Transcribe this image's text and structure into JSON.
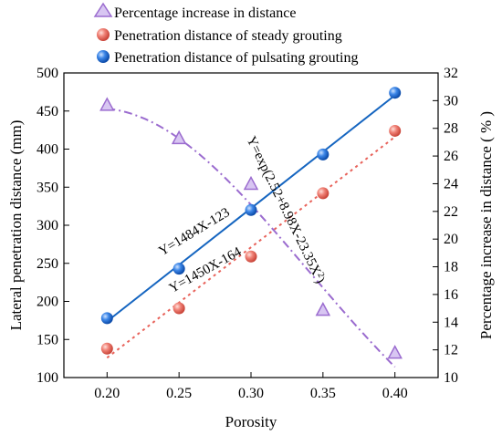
{
  "chart_data": {
    "type": "line",
    "xlabel": "Porosity",
    "ylabel": "Lateral penetration distance (mm)",
    "ylabel_right": "Percentage increase in distance ( % )",
    "x_ticks": [
      "0.20",
      "0.25",
      "0.30",
      "0.35",
      "0.40"
    ],
    "y_ticks": [
      "100",
      "150",
      "200",
      "250",
      "300",
      "350",
      "400",
      "450",
      "500"
    ],
    "y_right_ticks": [
      "10",
      "12",
      "14",
      "16",
      "18",
      "20",
      "22",
      "24",
      "26",
      "28",
      "30",
      "32"
    ],
    "xlim": [
      0.17,
      0.43
    ],
    "ylim": [
      100,
      500
    ],
    "ylim_right": [
      10,
      32
    ],
    "legend": {
      "position": "top",
      "entries": [
        "Percentage increase in distance",
        "Penetration distance of steady grouting",
        "Penetration distance of pulsating grouting"
      ]
    },
    "series": [
      {
        "name": "Percentage increase in distance",
        "axis": "right",
        "marker": "triangle",
        "color": "#9b6ccf",
        "x": [
          0.2,
          0.25,
          0.3,
          0.35,
          0.4
        ],
        "y": [
          29.7,
          27.3,
          24.0,
          14.9,
          11.8
        ]
      },
      {
        "name": "Penetration distance of steady grouting",
        "axis": "left",
        "marker": "circle",
        "color": "#e8625a",
        "x": [
          0.2,
          0.25,
          0.3,
          0.35,
          0.4
        ],
        "y": [
          138,
          191,
          259,
          342,
          424
        ]
      },
      {
        "name": "Penetration distance of pulsating grouting",
        "axis": "left",
        "marker": "circle",
        "color": "#1f6fd6",
        "x": [
          0.2,
          0.25,
          0.3,
          0.35,
          0.4
        ],
        "y": [
          178,
          243,
          320,
          393,
          474
        ]
      }
    ],
    "fits": [
      {
        "label": "Y=1484X-123",
        "slope": 1484,
        "intercept": -123,
        "color": "#1565c0",
        "style": "solid",
        "axis": "left"
      },
      {
        "label": "Y=1450X-164",
        "slope": 1450,
        "intercept": -164,
        "color": "#e8625a",
        "style": "dotted",
        "axis": "left"
      },
      {
        "label": "Y=exp(2.52+8.98X-23.35X²)",
        "a": 2.52,
        "b": 8.98,
        "c": -23.35,
        "color": "#9b6ccf",
        "style": "dashdot",
        "axis": "right"
      }
    ]
  }
}
